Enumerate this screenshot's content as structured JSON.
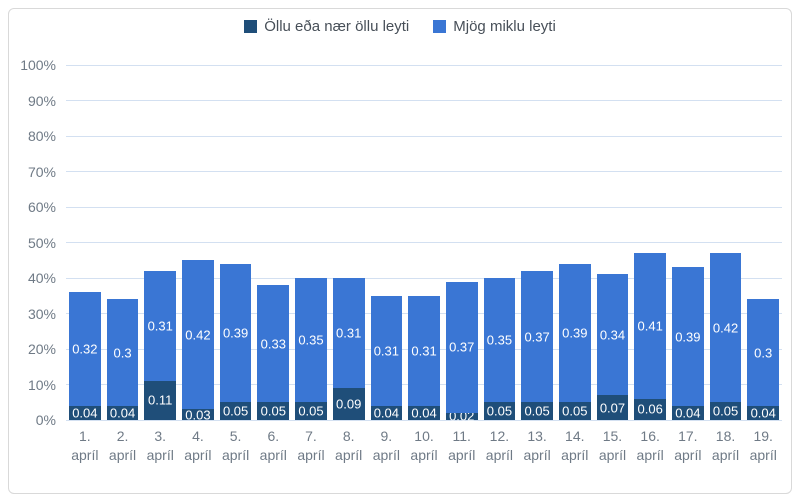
{
  "chart_data": {
    "type": "bar",
    "stacked": true,
    "title": "",
    "xlabel": "",
    "ylabel": "",
    "categories": [
      "1. apríl",
      "2. apríl",
      "3. apríl",
      "4. apríl",
      "5. apríl",
      "6. apríl",
      "7. apríl",
      "8. apríl",
      "9. apríl",
      "10. apríl",
      "11. apríl",
      "12. apríl",
      "13. apríl",
      "14. apríl",
      "15. apríl",
      "16. apríl",
      "17. apríl",
      "18. apríl",
      "19. apríl"
    ],
    "series": [
      {
        "name": "Öllu eða nær öllu leyti",
        "color": "#1f4e79",
        "values": [
          0.04,
          0.04,
          0.11,
          0.03,
          0.05,
          0.05,
          0.05,
          0.09,
          0.04,
          0.04,
          0.02,
          0.05,
          0.05,
          0.05,
          0.07,
          0.06,
          0.04,
          0.05,
          0.04
        ]
      },
      {
        "name": "Mjög miklu leyti",
        "color": "#3a76d4",
        "values": [
          0.32,
          0.3,
          0.31,
          0.42,
          0.39,
          0.33,
          0.35,
          0.31,
          0.31,
          0.31,
          0.37,
          0.35,
          0.37,
          0.39,
          0.34,
          0.41,
          0.39,
          0.42,
          0.3
        ]
      }
    ],
    "y_ticks": [
      "100%",
      "90%",
      "80%",
      "70%",
      "60%",
      "50%",
      "40%",
      "30%",
      "20%",
      "10%",
      "0%"
    ],
    "ylim": [
      0,
      1
    ],
    "grid": true,
    "legend_position": "top",
    "data_labels": true
  },
  "colors": {
    "series_dark": "#1f4e79",
    "series_light": "#3a76d4",
    "gridline": "#d3e0f1",
    "axis_text": "#6f7a86",
    "legend_text": "#474f58",
    "bar_label_text": "#ffffff",
    "frame_border": "#d9d9d9"
  }
}
